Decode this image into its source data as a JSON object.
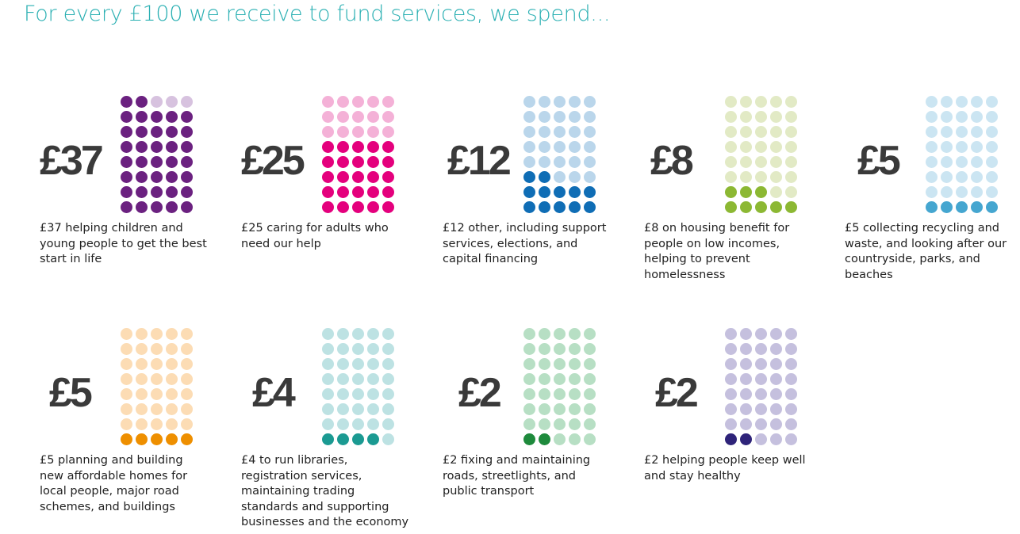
{
  "title": "For every £100 we receive to fund services, we spend...",
  "chart_data": {
    "type": "dot-grid",
    "total_per_grid": 40,
    "grid": {
      "columns": 5,
      "rows": 8
    },
    "items": [
      {
        "amount_label": "£37",
        "value": 37,
        "description": "£37 helping children and young people to get the best start in life",
        "color": "#6b2180",
        "light_color": "#d7c2df"
      },
      {
        "amount_label": "£25",
        "value": 25,
        "description": "£25 caring for adults who need our help",
        "color": "#e4007d",
        "light_color": "#f4b1d7"
      },
      {
        "amount_label": "£12",
        "value": 12,
        "description": "£12 other, including support services, elections, and capital financing",
        "color": "#0f6db5",
        "light_color": "#bad6eb"
      },
      {
        "amount_label": "£8",
        "value": 8,
        "description": "£8 on housing benefit for people on low incomes, helping to prevent homelessness",
        "color": "#8cb833",
        "light_color": "#e2eac5"
      },
      {
        "amount_label": "£5",
        "value": 5,
        "description": "£5 collecting recycling and waste, and looking after our countryside, parks, and beaches",
        "color": "#45a6d0",
        "light_color": "#cbe5f2"
      },
      {
        "amount_label": "£5",
        "value": 5,
        "description": "£5 planning and building new affordable homes for local people, major road schemes, and buildings",
        "color": "#ee8f00",
        "light_color": "#fcdcb4"
      },
      {
        "amount_label": "£4",
        "value": 4,
        "description": "£4 to run libraries, registration services, maintaining trading standards and supporting businesses and the economy",
        "color": "#1b9a92",
        "light_color": "#bde2e3"
      },
      {
        "amount_label": "£2",
        "value": 2,
        "description": "£2 fixing and maintaining roads, streetlights, and public transport",
        "color": "#1e8a3c",
        "light_color": "#b7dfc4"
      },
      {
        "amount_label": "£2",
        "value": 2,
        "description": "£2 helping people keep well and stay healthy",
        "color": "#2e2379",
        "light_color": "#c5c0de"
      }
    ]
  }
}
